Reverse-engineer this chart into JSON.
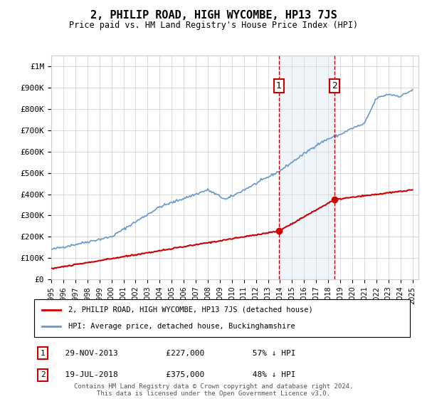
{
  "title": "2, PHILIP ROAD, HIGH WYCOMBE, HP13 7JS",
  "subtitle": "Price paid vs. HM Land Registry's House Price Index (HPI)",
  "ylim": [
    0,
    1050000
  ],
  "xlim_start": 1995.0,
  "xlim_end": 2025.5,
  "yticks": [
    0,
    100000,
    200000,
    300000,
    400000,
    500000,
    600000,
    700000,
    800000,
    900000,
    1000000
  ],
  "ytick_labels": [
    "£0",
    "£100K",
    "£200K",
    "£300K",
    "£400K",
    "£500K",
    "£600K",
    "£700K",
    "£800K",
    "£900K",
    "£1M"
  ],
  "transaction1_date": 2013.91,
  "transaction1_price": 227000,
  "transaction1_label": "1",
  "transaction1_display": "29-NOV-2013",
  "transaction1_price_str": "£227,000",
  "transaction1_hpi_str": "57% ↓ HPI",
  "transaction2_date": 2018.54,
  "transaction2_price": 375000,
  "transaction2_label": "2",
  "transaction2_display": "19-JUL-2018",
  "transaction2_price_str": "£375,000",
  "transaction2_hpi_str": "48% ↓ HPI",
  "hpi_color": "#6699cc",
  "price_color": "#cc0000",
  "marker_box_color": "#cc0000",
  "shade_color": "#d0e0f0",
  "grid_color": "#cccccc",
  "background_color": "#ffffff",
  "legend_line1": "2, PHILIP ROAD, HIGH WYCOMBE, HP13 7JS (detached house)",
  "legend_line2": "HPI: Average price, detached house, Buckinghamshire",
  "footer": "Contains HM Land Registry data © Crown copyright and database right 2024.\nThis data is licensed under the Open Government Licence v3.0."
}
